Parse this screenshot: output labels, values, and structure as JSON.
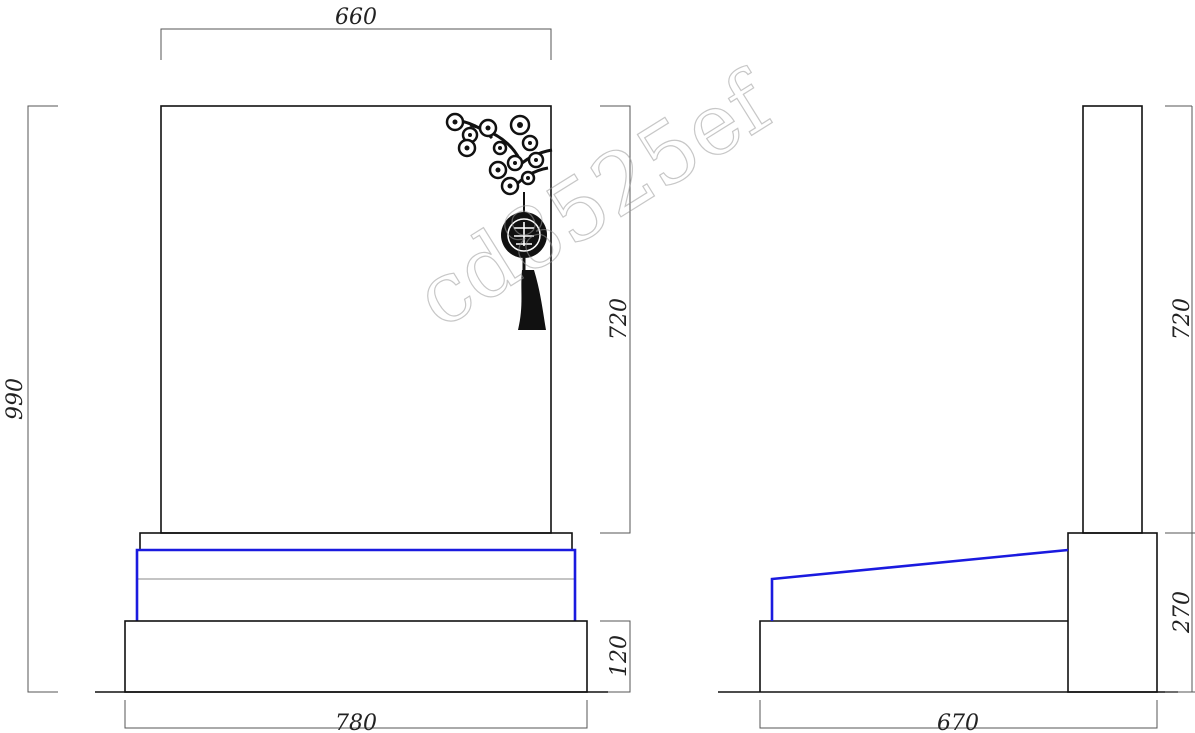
{
  "dimensions": {
    "front_top_width": "660",
    "front_total_height": "990",
    "front_upper_height": "720",
    "front_base_height": "120",
    "front_base_width": "780",
    "side_upper_height": "720",
    "side_lower_height": "270",
    "side_base_depth": "670"
  },
  "watermark": "cd8525ef",
  "colors": {
    "line": "#111111",
    "highlight": "#1a1adf"
  }
}
